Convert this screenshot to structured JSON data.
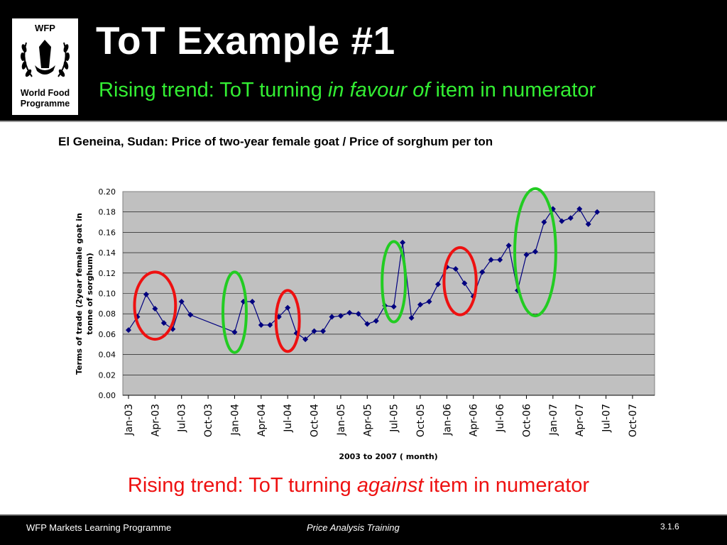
{
  "slide": {
    "title": "ToT Example #1",
    "subtitle": {
      "before": "Rising trend: ToT turning ",
      "emphasis": "in favour of",
      "after": " item in numerator"
    },
    "bottom_caption": {
      "before": "Rising trend: ToT turning ",
      "emphasis": "against",
      "after": " item in numerator"
    },
    "logo": {
      "top_text": "WFP",
      "line1": "World Food",
      "line2": "Programme"
    },
    "footer": {
      "left": "WFP Markets Learning Programme",
      "center": "Price Analysis Training",
      "right": "3.1.6"
    },
    "colors": {
      "header_bg": "#000000",
      "subtitle": "#33ee33",
      "caption": "#ee1111",
      "plot_bg": "#c0c0c0",
      "series": "#00007f",
      "green_highlight": "#22cc22",
      "red_highlight": "#ee1111"
    }
  },
  "chart_data": {
    "type": "line",
    "title": "El Geneina, Sudan: Price of two-year female goat / Price of sorghum per ton",
    "xlabel": "2003 to 2007 ( month)",
    "ylabel_lines": [
      "Terms of trade (2year female goat in",
      "tonne of sorghum)"
    ],
    "ylim": [
      0,
      0.2
    ],
    "y_ticks": [
      "0.00",
      "0.02",
      "0.04",
      "0.06",
      "0.08",
      "0.10",
      "0.12",
      "0.14",
      "0.16",
      "0.18",
      "0.20"
    ],
    "x_tick_labels": [
      "Jan-03",
      "Apr-03",
      "Jul-03",
      "Oct-03",
      "Jan-04",
      "Apr-04",
      "Jul-04",
      "Oct-04",
      "Jan-05",
      "Apr-05",
      "Jul-05",
      "Oct-05",
      "Jan-06",
      "Apr-06",
      "Jul-06",
      "Oct-06",
      "Jan-07",
      "Apr-07",
      "Jul-07",
      "Oct-07"
    ],
    "x_range_months": [
      "2003-01",
      "2007-10"
    ],
    "grid": true,
    "series": [
      {
        "points": [
          {
            "x": "2003-01",
            "y": 0.064
          },
          {
            "x": "2003-02",
            "y": 0.077
          },
          {
            "x": "2003-03",
            "y": 0.099
          },
          {
            "x": "2003-04",
            "y": 0.085
          },
          {
            "x": "2003-05",
            "y": 0.071
          },
          {
            "x": "2003-06",
            "y": 0.065
          },
          {
            "x": "2003-07",
            "y": 0.092
          },
          {
            "x": "2003-08",
            "y": 0.079
          },
          {
            "x": "2004-01",
            "y": 0.062
          },
          {
            "x": "2004-02",
            "y": 0.092
          },
          {
            "x": "2004-03",
            "y": 0.092
          },
          {
            "x": "2004-04",
            "y": 0.069
          },
          {
            "x": "2004-05",
            "y": 0.069
          },
          {
            "x": "2004-06",
            "y": 0.077
          },
          {
            "x": "2004-07",
            "y": 0.086
          },
          {
            "x": "2004-08",
            "y": 0.061
          },
          {
            "x": "2004-09",
            "y": 0.055
          },
          {
            "x": "2004-10",
            "y": 0.063
          },
          {
            "x": "2004-11",
            "y": 0.063
          },
          {
            "x": "2004-12",
            "y": 0.077
          },
          {
            "x": "2005-01",
            "y": 0.078
          },
          {
            "x": "2005-02",
            "y": 0.081
          },
          {
            "x": "2005-03",
            "y": 0.08
          },
          {
            "x": "2005-04",
            "y": 0.07
          },
          {
            "x": "2005-05",
            "y": 0.073
          },
          {
            "x": "2005-06",
            "y": 0.088
          },
          {
            "x": "2005-07",
            "y": 0.087
          },
          {
            "x": "2005-08",
            "y": 0.15
          },
          {
            "x": "2005-09",
            "y": 0.076
          },
          {
            "x": "2005-10",
            "y": 0.089
          },
          {
            "x": "2005-11",
            "y": 0.092
          },
          {
            "x": "2005-12",
            "y": 0.109
          },
          {
            "x": "2006-01",
            "y": 0.126
          },
          {
            "x": "2006-02",
            "y": 0.124
          },
          {
            "x": "2006-03",
            "y": 0.11
          },
          {
            "x": "2006-04",
            "y": 0.097
          },
          {
            "x": "2006-05",
            "y": 0.121
          },
          {
            "x": "2006-06",
            "y": 0.133
          },
          {
            "x": "2006-07",
            "y": 0.133
          },
          {
            "x": "2006-08",
            "y": 0.147
          },
          {
            "x": "2006-09",
            "y": 0.103
          },
          {
            "x": "2006-10",
            "y": 0.138
          },
          {
            "x": "2006-11",
            "y": 0.141
          },
          {
            "x": "2006-12",
            "y": 0.17
          },
          {
            "x": "2007-01",
            "y": 0.183
          },
          {
            "x": "2007-02",
            "y": 0.171
          },
          {
            "x": "2007-03",
            "y": 0.174
          },
          {
            "x": "2007-04",
            "y": 0.183
          },
          {
            "x": "2007-05",
            "y": 0.168
          },
          {
            "x": "2007-06",
            "y": 0.18
          }
        ]
      }
    ],
    "annotations": [
      {
        "shape": "ellipse",
        "color": "red",
        "from": "2003-02",
        "to": "2003-06",
        "ymin": 0.055,
        "ymax": 0.121
      },
      {
        "shape": "ellipse",
        "color": "green",
        "from": "2003-12",
        "to": "2004-02",
        "ymin": 0.042,
        "ymax": 0.121
      },
      {
        "shape": "ellipse",
        "color": "red",
        "from": "2004-06",
        "to": "2004-08",
        "ymin": 0.043,
        "ymax": 0.103
      },
      {
        "shape": "ellipse",
        "color": "green",
        "from": "2005-06",
        "to": "2005-08",
        "ymin": 0.072,
        "ymax": 0.151
      },
      {
        "shape": "ellipse",
        "color": "red",
        "from": "2006-01",
        "to": "2006-04",
        "ymin": 0.079,
        "ymax": 0.145
      },
      {
        "shape": "ellipse",
        "color": "green",
        "from": "2006-09",
        "to": "2007-01",
        "ymin": 0.078,
        "ymax": 0.203
      }
    ]
  }
}
